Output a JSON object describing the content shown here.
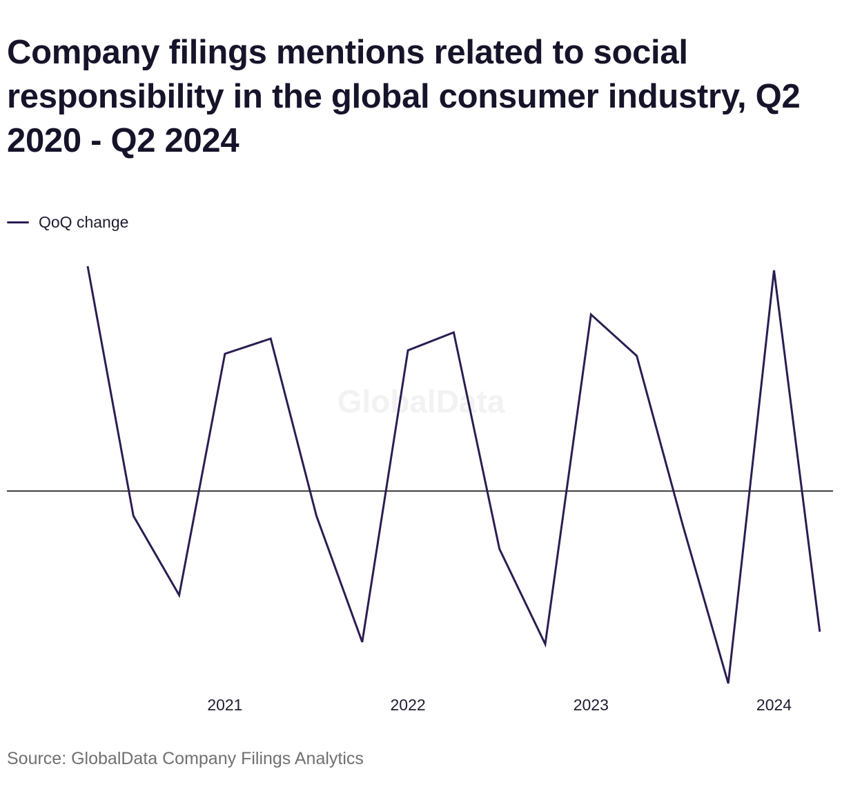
{
  "title": "Company filings mentions related to social responsibility in the global consumer industry, Q2 2020 - Q2 2024",
  "watermark": "GlobalData",
  "source": "Source: GlobalData Company Filings Analytics",
  "colors": {
    "series": "#2b1d52",
    "zero_line": "#000000",
    "text": "#16142a",
    "source_text": "#707070",
    "watermark": "#f2f2f2"
  },
  "chart_data": {
    "type": "line",
    "title": "Company filings mentions related to social responsibility in the global consumer industry, Q2 2020 - Q2 2024",
    "xlabel": "",
    "ylabel": "",
    "x": [
      "Q2 2020",
      "Q3 2020",
      "Q4 2020",
      "Q1 2021",
      "Q2 2021",
      "Q3 2021",
      "Q4 2021",
      "Q1 2022",
      "Q2 2022",
      "Q3 2022",
      "Q4 2022",
      "Q1 2023",
      "Q2 2023",
      "Q3 2023",
      "Q4 2023",
      "Q1 2024",
      "Q2 2024"
    ],
    "x_tick_labels": [
      {
        "label": "2021",
        "at": "Q1 2021"
      },
      {
        "label": "2022",
        "at": "Q1 2022"
      },
      {
        "label": "2023",
        "at": "Q1 2023"
      },
      {
        "label": "2024",
        "at": "Q1 2024"
      }
    ],
    "series": [
      {
        "name": "QoQ change",
        "values": [
          32.6,
          -3.6,
          -15.1,
          19.9,
          22.1,
          -3.6,
          -21.9,
          20.4,
          23.0,
          -8.4,
          -22.2,
          25.6,
          19.6,
          -4.8,
          -27.9,
          32.0,
          -20.4
        ]
      }
    ],
    "ylim": [
      -30,
      35
    ],
    "zero_line": true,
    "grid": false,
    "y_tick_labels": false,
    "legend": "top-left"
  }
}
